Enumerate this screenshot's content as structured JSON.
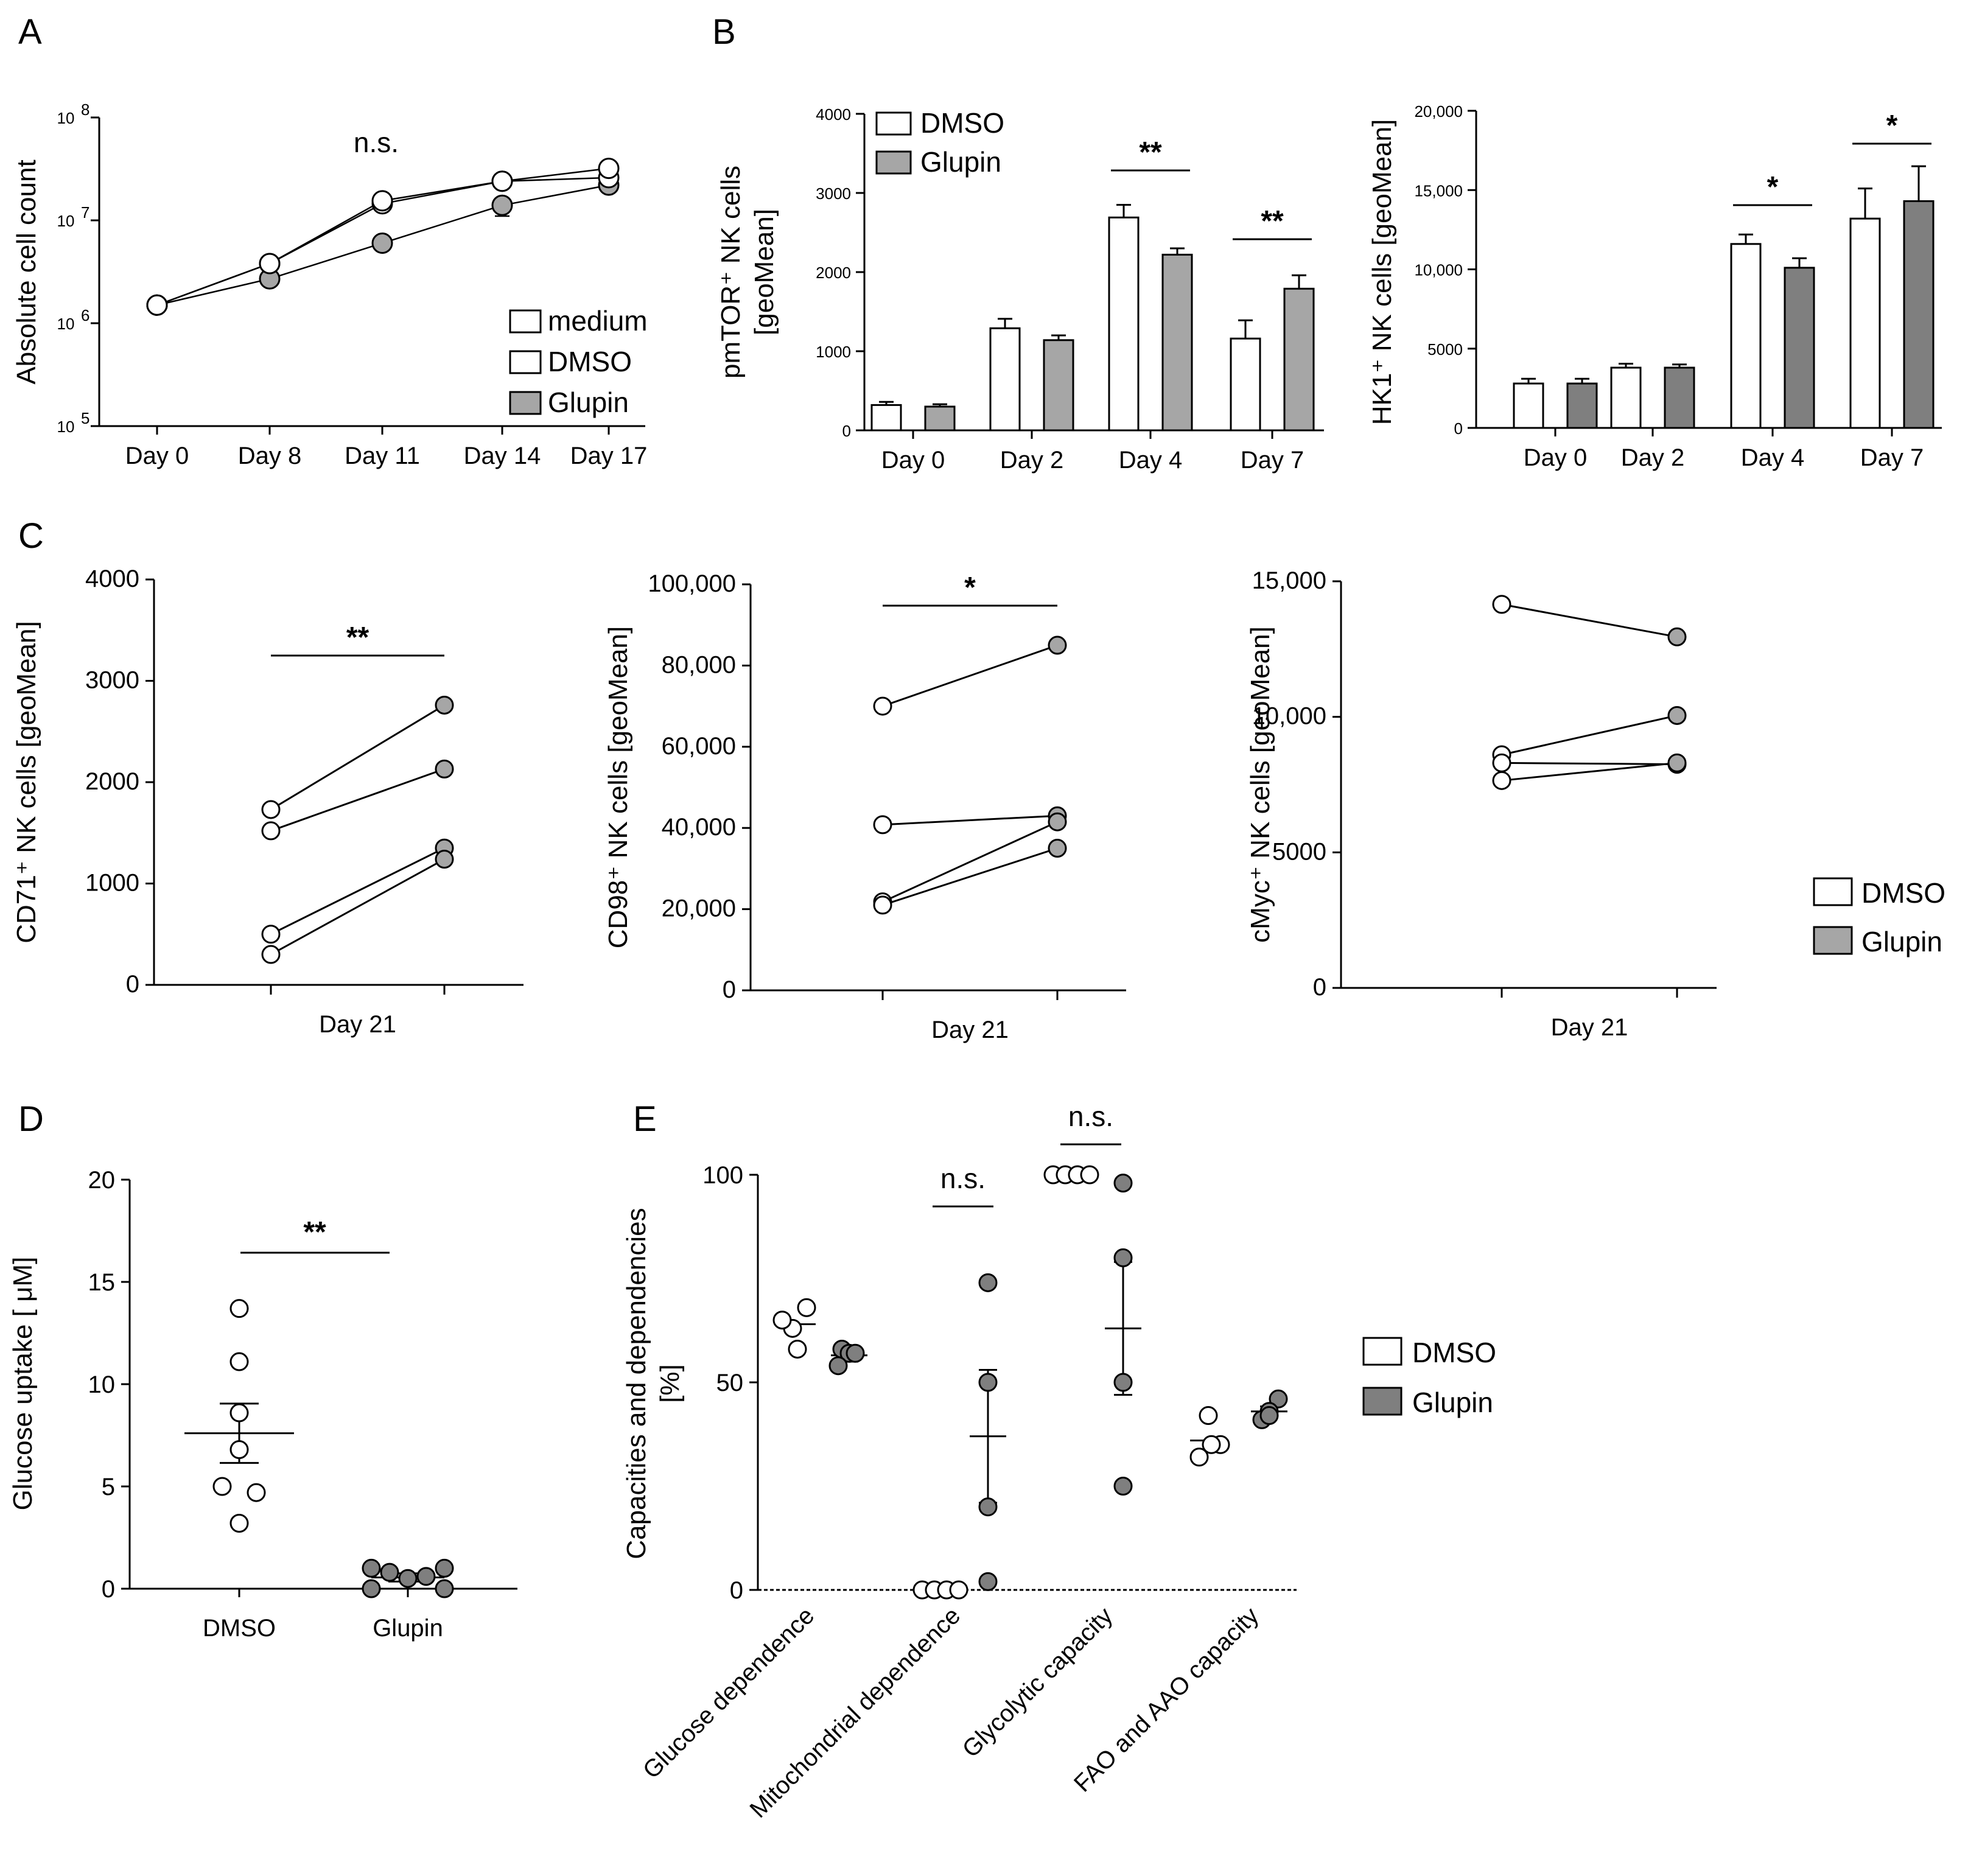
{
  "colors": {
    "white": "#ffffff",
    "light_gray": "#a6a6a6",
    "gray": "#7f7f7f",
    "dark": "#000000"
  },
  "panels": {
    "A": {
      "label": "A"
    },
    "B": {
      "label": "B"
    },
    "C": {
      "label": "C"
    },
    "D": {
      "label": "D"
    },
    "E": {
      "label": "E"
    }
  },
  "chart_data": [
    {
      "id": "A",
      "type": "line",
      "title": "",
      "xlabel": "",
      "ylabel": "Absolute cell count",
      "yscale": "log",
      "ylim": [
        100000,
        100000000
      ],
      "y_ticks": [
        {
          "base": "10",
          "exp": "5"
        },
        {
          "base": "10",
          "exp": "6"
        },
        {
          "base": "10",
          "exp": "7"
        },
        {
          "base": "10",
          "exp": "8"
        }
      ],
      "categories": [
        "Day 0",
        "Day 8",
        "Day 11",
        "Day 14",
        "Day 17"
      ],
      "annotation": "n.s.",
      "legend": [
        "medium",
        "DMSO",
        "Glupin"
      ],
      "series": [
        {
          "name": "medium",
          "values": [
            1500000,
            3800000,
            15500000,
            24000000,
            32000000
          ]
        },
        {
          "name": "DMSO",
          "values": [
            1500000,
            3800000,
            14500000,
            24000000,
            26000000
          ]
        },
        {
          "name": "Glupin",
          "values": [
            1500000,
            2700000,
            6000000,
            14000000,
            22000000
          ]
        }
      ]
    },
    {
      "id": "B1",
      "type": "bar",
      "ylabel_line1": "pmTOR⁺ NK cells",
      "ylabel_line2": "[geoMean]",
      "ylim": [
        0,
        4000
      ],
      "y_ticks": [
        "0",
        "1000",
        "2000",
        "3000",
        "4000"
      ],
      "categories": [
        "Day 0",
        "Day 2",
        "Day 4",
        "Day 7"
      ],
      "legend": [
        "DMSO",
        "Glupin"
      ],
      "series": [
        {
          "name": "DMSO",
          "values": [
            320,
            1290,
            2690,
            1160
          ],
          "err": [
            40,
            120,
            160,
            230
          ]
        },
        {
          "name": "Glupin",
          "values": [
            300,
            1140,
            2220,
            1790
          ],
          "err": [
            30,
            60,
            80,
            170
          ]
        }
      ],
      "significance": [
        "",
        "",
        "**",
        "**"
      ]
    },
    {
      "id": "B2",
      "type": "bar",
      "ylabel": "HK1⁺ NK cells [geoMean]",
      "ylim": [
        0,
        20000
      ],
      "y_ticks": [
        "0",
        "5000",
        "10,000",
        "15,000",
        "20,000"
      ],
      "categories": [
        "Day 0",
        "Day 2",
        "Day 4",
        "Day 7"
      ],
      "series": [
        {
          "name": "DMSO",
          "values": [
            2800,
            3800,
            11600,
            13200
          ],
          "err": [
            300,
            250,
            600,
            1900
          ]
        },
        {
          "name": "Glupin",
          "values": [
            2800,
            3800,
            10100,
            14300
          ],
          "err": [
            300,
            200,
            600,
            2200
          ]
        }
      ],
      "significance": [
        "",
        "",
        "*",
        "*"
      ]
    },
    {
      "id": "C1",
      "type": "scatter",
      "ylabel": "CD71⁺ NK cells [geoMean]",
      "ylim": [
        0,
        4000
      ],
      "y_ticks": [
        "0",
        "1000",
        "2000",
        "3000",
        "4000"
      ],
      "xlabel": "Day 21",
      "significance": "**",
      "pairs": [
        [
          1730,
          2760
        ],
        [
          1520,
          2130
        ],
        [
          500,
          1350
        ],
        [
          300,
          1240
        ]
      ]
    },
    {
      "id": "C2",
      "type": "scatter",
      "ylabel": "CD98⁺ NK cells [geoMean]",
      "ylim": [
        0,
        100000
      ],
      "y_ticks": [
        "0",
        "20,000",
        "40,000",
        "60,000",
        "80,000",
        "100,000"
      ],
      "xlabel": "Day 21",
      "significance": "*",
      "pairs": [
        [
          70000,
          85000
        ],
        [
          40800,
          43000
        ],
        [
          21800,
          41500
        ],
        [
          21000,
          35000
        ]
      ]
    },
    {
      "id": "C3",
      "type": "scatter",
      "ylabel": "cMyc⁺ NK cells [geoMean]",
      "ylim": [
        0,
        15000
      ],
      "y_ticks": [
        "0",
        "5000",
        "10,000",
        "15,000"
      ],
      "xlabel": "Day 21",
      "legend": [
        "DMSO",
        "Glupin"
      ],
      "pairs": [
        [
          14150,
          12950
        ],
        [
          8600,
          10050
        ],
        [
          8300,
          8250
        ],
        [
          7650,
          8300
        ]
      ]
    },
    {
      "id": "D",
      "type": "scatter",
      "ylabel": "Glucose uptake [ μM]",
      "ylim": [
        0,
        20
      ],
      "y_ticks": [
        "0",
        "5",
        "10",
        "15",
        "20"
      ],
      "categories": [
        "DMSO",
        "Glupin"
      ],
      "significance": "**",
      "series": [
        {
          "name": "DMSO",
          "values": [
            13.7,
            11.1,
            8.6,
            6.8,
            5.0,
            4.7,
            3.2
          ],
          "mean": 7.6,
          "sem": 1.45
        },
        {
          "name": "Glupin",
          "values": [
            1.0,
            0.0,
            0.8,
            0.5,
            0.6,
            1.0,
            0.0
          ],
          "mean": 0.55,
          "sem": 0.2
        }
      ]
    },
    {
      "id": "E",
      "type": "scatter",
      "ylabel_line1": "Capacities and dependencies",
      "ylabel_line2": "[%]",
      "ylim": [
        0,
        100
      ],
      "y_ticks": [
        "0",
        "50",
        "100"
      ],
      "categories": [
        "Glucose dependence",
        "Mitochondrial dependence",
        "Glycolytic capacity",
        "FAO and AAO capacity"
      ],
      "legend": [
        "DMSO",
        "Glupin"
      ],
      "significance": [
        "",
        "n.s.",
        "n.s.",
        ""
      ],
      "series": [
        {
          "name": "DMSO",
          "values": [
            [
              68,
              63,
              65,
              58
            ],
            [
              0,
              0,
              0,
              0
            ],
            [
              100,
              100,
              100,
              100
            ],
            [
              42,
              35,
              32,
              35
            ]
          ],
          "mean": [
            64,
            0,
            100,
            36
          ]
        },
        {
          "name": "Glupin",
          "values": [
            [
              58,
              57,
              54,
              57
            ],
            [
              74,
              50,
              20,
              2
            ],
            [
              98,
              80,
              50,
              25
            ],
            [
              46,
              43,
              41,
              42
            ]
          ],
          "mean": [
            56.5,
            37,
            63,
            43
          ],
          "sem": [
            1.5,
            16,
            16,
            1.2
          ]
        }
      ]
    }
  ]
}
